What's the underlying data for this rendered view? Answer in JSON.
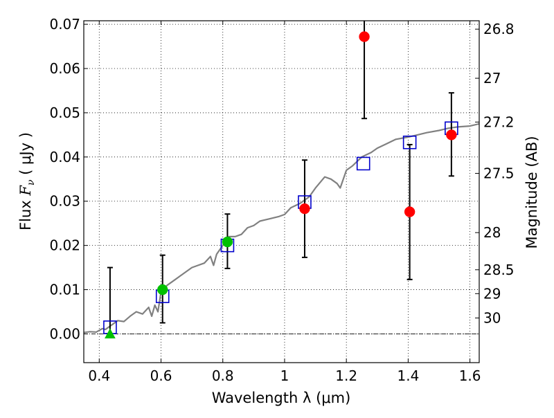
{
  "chart_data": {
    "type": "scatter",
    "title": "",
    "xlabel": "Wavelength  λ (μm)",
    "ylabel_prefix": "Flux  ",
    "ylabel_symbol": "F",
    "ylabel_subscript": "ν",
    "ylabel_suffix": "  ( μJy )",
    "y2label": "Magnitude (AB)",
    "xlim": [
      0.35,
      1.63
    ],
    "ylim": [
      -0.0065,
      0.0708
    ],
    "grid": true,
    "zero_line": true,
    "xticks": [
      {
        "value": 0.4,
        "label": "0.4"
      },
      {
        "value": 0.6,
        "label": "0.6"
      },
      {
        "value": 0.8,
        "label": "0.8"
      },
      {
        "value": 1.0,
        "label": "1"
      },
      {
        "value": 1.2,
        "label": "1.2"
      },
      {
        "value": 1.4,
        "label": "1.4"
      },
      {
        "value": 1.6,
        "label": "1.6"
      }
    ],
    "yticks": [
      {
        "value": 0.0,
        "label": "0.00"
      },
      {
        "value": 0.01,
        "label": "0.01"
      },
      {
        "value": 0.02,
        "label": "0.02"
      },
      {
        "value": 0.03,
        "label": "0.03"
      },
      {
        "value": 0.04,
        "label": "0.04"
      },
      {
        "value": 0.05,
        "label": "0.05"
      },
      {
        "value": 0.06,
        "label": "0.06"
      },
      {
        "value": 0.07,
        "label": "0.07"
      }
    ],
    "y2ticks": [
      {
        "flux": 0.0689,
        "label": "26.8"
      },
      {
        "flux": 0.0578,
        "label": "27"
      },
      {
        "flux": 0.0479,
        "label": "27.2"
      },
      {
        "flux": 0.0363,
        "label": "27.5"
      },
      {
        "flux": 0.0229,
        "label": "28"
      },
      {
        "flux": 0.0145,
        "label": "28.5"
      },
      {
        "flux": 0.0091,
        "label": "29"
      },
      {
        "flux": 0.0036,
        "label": "30"
      }
    ],
    "colors": {
      "model": "#808080",
      "observed_red": "#ff0000",
      "observed_green": "#00c000",
      "upper_limit": "#00c000",
      "model_flux": "#0000cc",
      "errorbar": "#000000",
      "grid": "#000000"
    },
    "series": [
      {
        "name": "model spectrum",
        "kind": "line",
        "color": "#808080",
        "x": [
          0.35,
          0.37,
          0.39,
          0.41,
          0.42,
          0.44,
          0.46,
          0.48,
          0.5,
          0.52,
          0.54,
          0.56,
          0.57,
          0.58,
          0.59,
          0.6,
          0.62,
          0.64,
          0.66,
          0.68,
          0.7,
          0.72,
          0.74,
          0.76,
          0.77,
          0.78,
          0.8,
          0.82,
          0.84,
          0.86,
          0.88,
          0.9,
          0.92,
          0.95,
          0.98,
          1.0,
          1.02,
          1.05,
          1.08,
          1.1,
          1.13,
          1.15,
          1.17,
          1.18,
          1.2,
          1.22,
          1.25,
          1.28,
          1.3,
          1.33,
          1.36,
          1.4,
          1.43,
          1.46,
          1.5,
          1.53,
          1.56,
          1.6,
          1.63
        ],
        "y": [
          0.0003,
          0.0005,
          0.0004,
          0.0012,
          0.001,
          0.002,
          0.003,
          0.0028,
          0.004,
          0.005,
          0.0045,
          0.006,
          0.004,
          0.0065,
          0.005,
          0.0095,
          0.011,
          0.012,
          0.013,
          0.014,
          0.015,
          0.0155,
          0.016,
          0.0175,
          0.0155,
          0.018,
          0.02,
          0.022,
          0.022,
          0.0225,
          0.024,
          0.0245,
          0.0255,
          0.026,
          0.0265,
          0.027,
          0.0285,
          0.0295,
          0.031,
          0.033,
          0.0355,
          0.035,
          0.034,
          0.033,
          0.037,
          0.038,
          0.04,
          0.041,
          0.042,
          0.043,
          0.044,
          0.0445,
          0.045,
          0.0455,
          0.046,
          0.0465,
          0.0468,
          0.047,
          0.0475
        ]
      },
      {
        "name": "model flux",
        "kind": "open-square",
        "color": "#0000cc",
        "x": [
          0.435,
          0.605,
          0.815,
          1.065,
          1.255,
          1.405,
          1.54
        ],
        "y": [
          0.0015,
          0.0085,
          0.02,
          0.0298,
          0.0385,
          0.0433,
          0.0465
        ]
      },
      {
        "name": "observed flux",
        "kind": "errorbar",
        "points": [
          {
            "x": 0.605,
            "y": 0.01,
            "yerr_low": 0.0075,
            "yerr_high": 0.0078,
            "color": "#00c000"
          },
          {
            "x": 0.815,
            "y": 0.0208,
            "yerr_low": 0.006,
            "yerr_high": 0.0063,
            "color": "#00c000"
          },
          {
            "x": 1.065,
            "y": 0.0283,
            "yerr_low": 0.011,
            "yerr_high": 0.011,
            "color": "#ff0000"
          },
          {
            "x": 1.258,
            "y": 0.0672,
            "yerr_low": 0.0185,
            "yerr_high": 0.004,
            "color": "#ff0000"
          },
          {
            "x": 1.405,
            "y": 0.0276,
            "yerr_low": 0.0153,
            "yerr_high": 0.0152,
            "color": "#ff0000"
          },
          {
            "x": 1.54,
            "y": 0.045,
            "yerr_low": 0.0093,
            "yerr_high": 0.0095,
            "color": "#ff0000"
          }
        ]
      },
      {
        "name": "upper limit",
        "kind": "triangle",
        "color": "#00c000",
        "x": [
          0.435
        ],
        "y": [
          0.0
        ],
        "errbar_top": 0.015
      }
    ]
  }
}
